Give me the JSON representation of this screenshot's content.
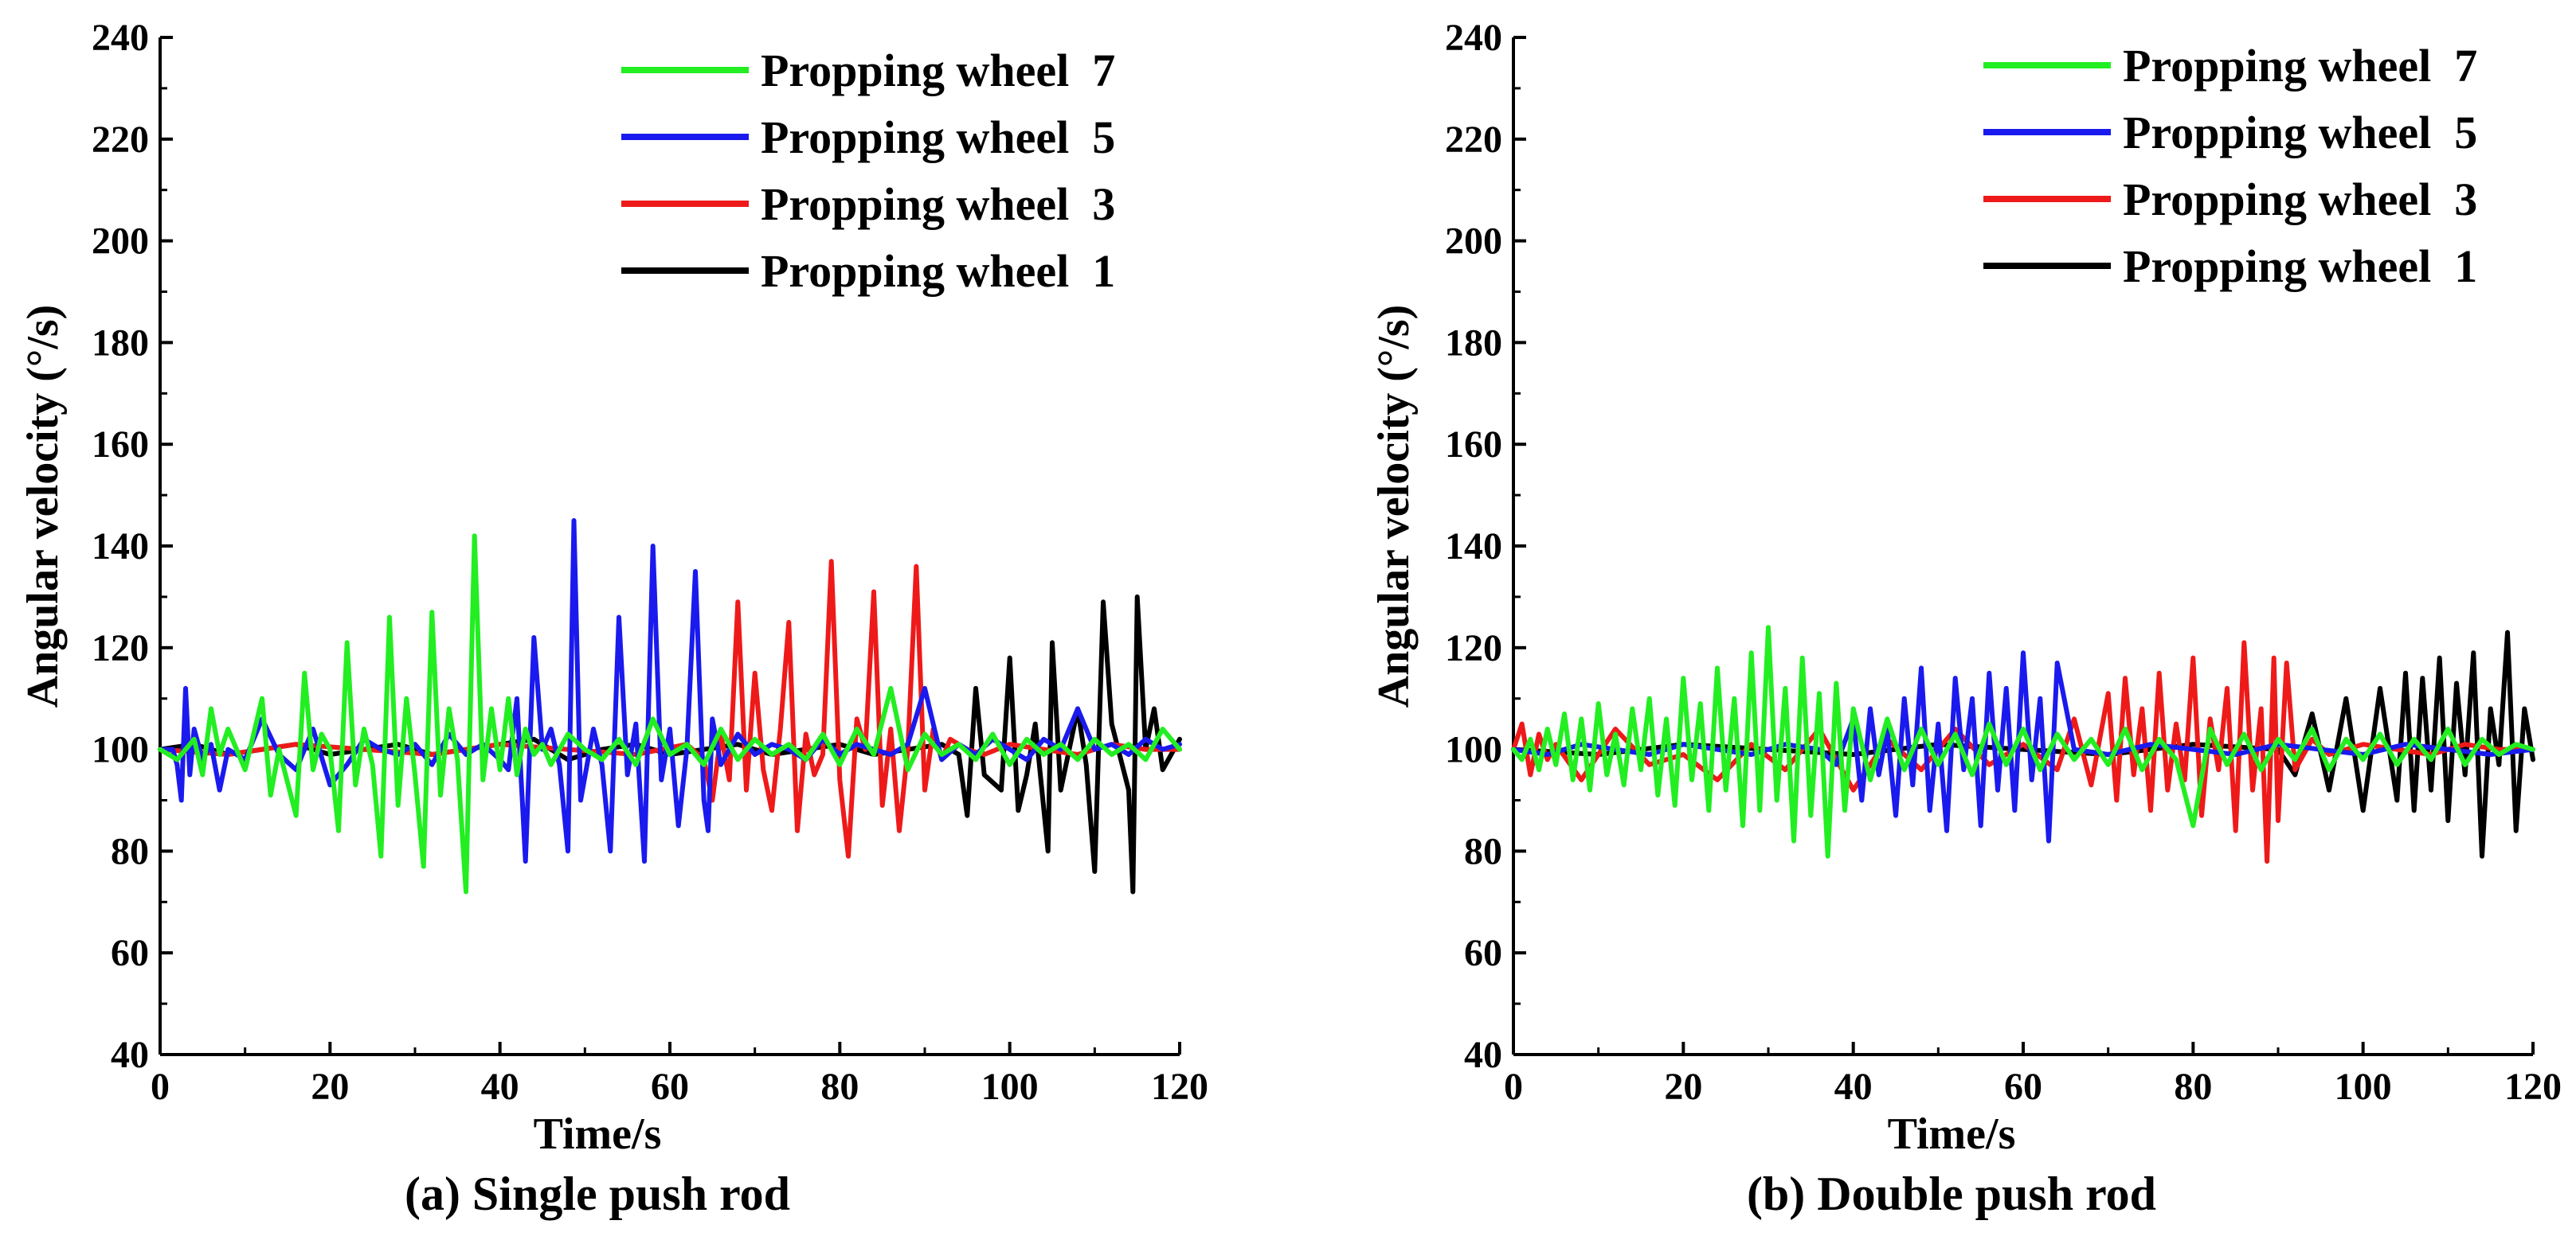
{
  "figure": {
    "captions": [
      "(a) Single push rod",
      "(b) Double push rod"
    ]
  },
  "chart_data": [
    {
      "type": "line",
      "panel": "a",
      "title": "",
      "caption": "(a) Single push rod",
      "xlabel": "Time/s",
      "ylabel": "Angular velocity (°/s)",
      "xlim": [
        0,
        120
      ],
      "ylim": [
        40,
        240
      ],
      "xticks": [
        0,
        20,
        40,
        60,
        80,
        100,
        120
      ],
      "yticks": [
        40,
        60,
        80,
        100,
        120,
        140,
        160,
        180,
        200,
        220,
        240
      ],
      "legend_position": "top-right",
      "legend": [
        {
          "name": "Propping wheel  7",
          "color": "#22ee22"
        },
        {
          "name": "Propping wheel  5",
          "color": "#1a1aee"
        },
        {
          "name": "Propping wheel  3",
          "color": "#ee1a1a"
        },
        {
          "name": "Propping wheel  1",
          "color": "#000000"
        }
      ],
      "series": [
        {
          "name": "Propping wheel  1",
          "color": "#000000",
          "x": [
            0,
            4,
            8,
            12,
            16,
            20,
            24,
            28,
            32,
            36,
            40,
            44,
            48,
            52,
            56,
            60,
            64,
            68,
            72,
            76,
            80,
            84,
            88,
            92,
            94,
            95,
            96,
            97,
            99,
            100,
            101,
            102,
            103,
            104.5,
            105,
            106,
            108,
            109,
            110,
            111,
            112,
            114,
            114.5,
            115,
            116,
            117,
            118,
            120
          ],
          "values": [
            100,
            101,
            99,
            100,
            101,
            99,
            100,
            101,
            99,
            100,
            101,
            102,
            98,
            100,
            101,
            99,
            100,
            101,
            99,
            100,
            101,
            99,
            100,
            101,
            99,
            87,
            112,
            95,
            92,
            118,
            88,
            95,
            105,
            80,
            121,
            92,
            108,
            97,
            76,
            129,
            105,
            92,
            72,
            130,
            100,
            108,
            96,
            102
          ]
        },
        {
          "name": "Propping wheel  3",
          "color": "#ee1a1a",
          "x": [
            0,
            8,
            16,
            24,
            32,
            40,
            48,
            56,
            62,
            64,
            65,
            66,
            67,
            68,
            69,
            70,
            71,
            72,
            73,
            74,
            75,
            76,
            77,
            78,
            79,
            80,
            81,
            82,
            83,
            84,
            85,
            86,
            87,
            88,
            89,
            90,
            91,
            92,
            93,
            95,
            97,
            100,
            104,
            108,
            112,
            116,
            120
          ],
          "values": [
            100,
            99,
            101,
            100,
            99,
            101,
            100,
            99,
            101,
            98,
            90,
            103,
            94,
            129,
            92,
            115,
            96,
            88,
            104,
            125,
            84,
            103,
            95,
            99,
            137,
            94,
            79,
            106,
            100,
            131,
            89,
            104,
            84,
            100,
            136,
            92,
            104,
            98,
            102,
            100,
            99,
            101,
            100,
            99,
            101,
            100,
            100
          ]
        },
        {
          "name": "Propping wheel  5",
          "color": "#1a1aee",
          "x": [
            0,
            1.5,
            2,
            2.5,
            3,
            3.5,
            4,
            5,
            6,
            7,
            8,
            10,
            12,
            14,
            16,
            18,
            20,
            22,
            24,
            26,
            28,
            30,
            32,
            34,
            36,
            38,
            40,
            41,
            42,
            43,
            44,
            45,
            46,
            47,
            48,
            48.7,
            49.5,
            51,
            52,
            53,
            54,
            55,
            56,
            57,
            58,
            59,
            60,
            61,
            62,
            63,
            64,
            64.5,
            65,
            66,
            68,
            70,
            72,
            74,
            76,
            78,
            80,
            82,
            84,
            86,
            88,
            90,
            92,
            94,
            96,
            98,
            100,
            102,
            104,
            106,
            108,
            110,
            112,
            114,
            116,
            118,
            120
          ],
          "values": [
            100,
            100,
            97,
            90,
            112,
            95,
            104,
            98,
            101,
            92,
            100,
            98,
            106,
            99,
            96,
            104,
            93,
            97,
            102,
            100,
            99,
            101,
            97,
            103,
            99,
            101,
            98,
            96,
            110,
            78,
            122,
            100,
            104,
            97,
            80,
            145,
            90,
            104,
            97,
            80,
            126,
            95,
            105,
            78,
            140,
            94,
            104,
            85,
            100,
            135,
            90,
            84,
            106,
            97,
            103,
            99,
            101,
            100,
            98,
            102,
            99,
            101,
            100,
            99,
            101,
            112,
            98,
            101,
            99,
            102,
            100,
            98,
            102,
            100,
            108,
            100,
            101,
            99,
            102,
            100,
            101
          ]
        },
        {
          "name": "Propping wheel  7",
          "color": "#22ee22",
          "x": [
            0,
            2,
            4,
            5,
            6,
            7,
            8,
            10,
            12,
            13,
            14,
            16,
            17,
            18,
            19,
            20,
            21,
            22,
            23,
            24,
            25,
            26,
            27,
            28,
            29,
            30,
            31,
            32,
            33,
            34,
            35,
            36,
            37,
            38,
            39,
            40,
            41,
            42,
            43,
            44,
            45,
            46,
            48,
            50,
            52,
            54,
            56,
            58,
            60,
            62,
            64,
            66,
            68,
            70,
            72,
            74,
            76,
            78,
            80,
            82,
            84,
            86,
            88,
            90,
            92,
            94,
            96,
            98,
            100,
            102,
            104,
            106,
            108,
            110,
            112,
            114,
            116,
            118,
            120
          ],
          "values": [
            100,
            98,
            102,
            95,
            108,
            99,
            104,
            96,
            110,
            91,
            100,
            87,
            115,
            96,
            103,
            100,
            84,
            121,
            93,
            104,
            97,
            79,
            126,
            89,
            110,
            95,
            77,
            127,
            91,
            108,
            98,
            72,
            142,
            94,
            108,
            96,
            110,
            95,
            104,
            99,
            101,
            97,
            103,
            100,
            98,
            102,
            97,
            106,
            99,
            101,
            97,
            104,
            98,
            102,
            99,
            101,
            98,
            103,
            97,
            104,
            99,
            112,
            96,
            103,
            99,
            101,
            98,
            103,
            97,
            102,
            99,
            101,
            98,
            102,
            99,
            101,
            98,
            104,
            100
          ]
        }
      ]
    },
    {
      "type": "line",
      "panel": "b",
      "title": "",
      "caption": "(b) Double push rod",
      "xlabel": "Time/s",
      "ylabel": "Angular velocity (°/s)",
      "xlim": [
        0,
        120
      ],
      "ylim": [
        40,
        240
      ],
      "xticks": [
        0,
        20,
        40,
        60,
        80,
        100,
        120
      ],
      "yticks": [
        40,
        60,
        80,
        100,
        120,
        140,
        160,
        180,
        200,
        220,
        240
      ],
      "legend_position": "top-right",
      "legend": [
        {
          "name": "Propping wheel  7",
          "color": "#22ee22"
        },
        {
          "name": "Propping wheel  5",
          "color": "#1a1aee"
        },
        {
          "name": "Propping wheel  3",
          "color": "#ee1a1a"
        },
        {
          "name": "Propping wheel  1",
          "color": "#000000"
        }
      ],
      "series": [
        {
          "name": "Propping wheel  1",
          "color": "#000000",
          "x": [
            0,
            10,
            20,
            30,
            40,
            50,
            60,
            70,
            80,
            90,
            92,
            94,
            96,
            98,
            100,
            102,
            104,
            105,
            106,
            107,
            108,
            109,
            110,
            111,
            112,
            113,
            114,
            115,
            116,
            117,
            118,
            119,
            120
          ],
          "values": [
            100,
            99,
            101,
            100,
            99,
            101,
            100,
            99,
            101,
            100,
            95,
            107,
            92,
            110,
            88,
            112,
            90,
            115,
            88,
            114,
            92,
            118,
            86,
            113,
            95,
            119,
            79,
            108,
            97,
            123,
            84,
            108,
            98
          ]
        },
        {
          "name": "Propping wheel  3",
          "color": "#ee1a1a",
          "x": [
            0,
            1,
            2,
            3,
            4,
            5,
            8,
            12,
            16,
            20,
            24,
            28,
            32,
            36,
            40,
            44,
            48,
            52,
            56,
            60,
            64,
            66,
            68,
            70,
            71,
            72,
            73,
            74,
            75,
            76,
            77,
            78,
            79,
            80,
            81,
            82,
            83,
            84,
            85,
            86,
            87,
            88,
            88.7,
            89.5,
            90,
            91,
            92,
            94,
            96,
            100,
            104,
            108,
            112,
            116,
            120
          ],
          "values": [
            100,
            105,
            95,
            103,
            98,
            101,
            94,
            104,
            97,
            99,
            94,
            101,
            96,
            104,
            92,
            102,
            96,
            104,
            97,
            101,
            96,
            106,
            93,
            111,
            90,
            114,
            95,
            108,
            88,
            115,
            92,
            105,
            94,
            118,
            87,
            106,
            96,
            112,
            84,
            121,
            92,
            108,
            78,
            118,
            86,
            117,
            96,
            102,
            99,
            101,
            100,
            99,
            101,
            100,
            100
          ]
        },
        {
          "name": "Propping wheel  5",
          "color": "#1a1aee",
          "x": [
            0,
            4,
            8,
            12,
            16,
            20,
            24,
            28,
            32,
            36,
            38,
            40,
            41,
            42,
            43,
            44,
            45,
            46,
            47,
            48,
            49,
            50,
            51,
            52,
            53,
            54,
            55,
            56,
            57,
            58,
            59,
            60,
            61,
            62,
            63,
            64,
            66,
            70,
            75,
            80,
            85,
            90,
            95,
            100,
            105,
            110,
            115,
            120
          ],
          "values": [
            100,
            99,
            101,
            100,
            99,
            101,
            100,
            99,
            101,
            100,
            97,
            106,
            90,
            108,
            95,
            104,
            87,
            110,
            93,
            116,
            88,
            105,
            84,
            114,
            96,
            110,
            85,
            115,
            92,
            112,
            88,
            119,
            94,
            110,
            82,
            117,
            100,
            99,
            101,
            100,
            99,
            101,
            100,
            99,
            101,
            100,
            99,
            100
          ]
        },
        {
          "name": "Propping wheel  7",
          "color": "#22ee22",
          "x": [
            0,
            1,
            2,
            3,
            4,
            5,
            6,
            7,
            8,
            9,
            10,
            11,
            12,
            13,
            14,
            15,
            16,
            17,
            18,
            19,
            20,
            21,
            22,
            23,
            24,
            25,
            26,
            27,
            28,
            29,
            30,
            31,
            32,
            33,
            34,
            35,
            36,
            37,
            38,
            39,
            40,
            42,
            44,
            46,
            48,
            50,
            52,
            54,
            56,
            58,
            60,
            62,
            64,
            66,
            68,
            70,
            72,
            74,
            76,
            78,
            80,
            82,
            84,
            86,
            88,
            90,
            92,
            94,
            96,
            98,
            100,
            102,
            104,
            106,
            108,
            110,
            112,
            114,
            116,
            118,
            120
          ],
          "values": [
            100,
            98,
            102,
            96,
            104,
            97,
            107,
            94,
            106,
            92,
            109,
            95,
            103,
            93,
            108,
            96,
            110,
            91,
            106,
            89,
            114,
            94,
            109,
            88,
            116,
            92,
            110,
            85,
            119,
            88,
            124,
            90,
            112,
            82,
            118,
            87,
            111,
            79,
            113,
            88,
            108,
            94,
            106,
            96,
            104,
            97,
            103,
            95,
            105,
            97,
            104,
            96,
            103,
            98,
            102,
            97,
            104,
            96,
            102,
            98,
            85,
            104,
            97,
            103,
            96,
            102,
            98,
            104,
            96,
            102,
            98,
            103,
            97,
            102,
            98,
            104,
            97,
            102,
            99,
            101,
            100
          ]
        }
      ]
    }
  ]
}
